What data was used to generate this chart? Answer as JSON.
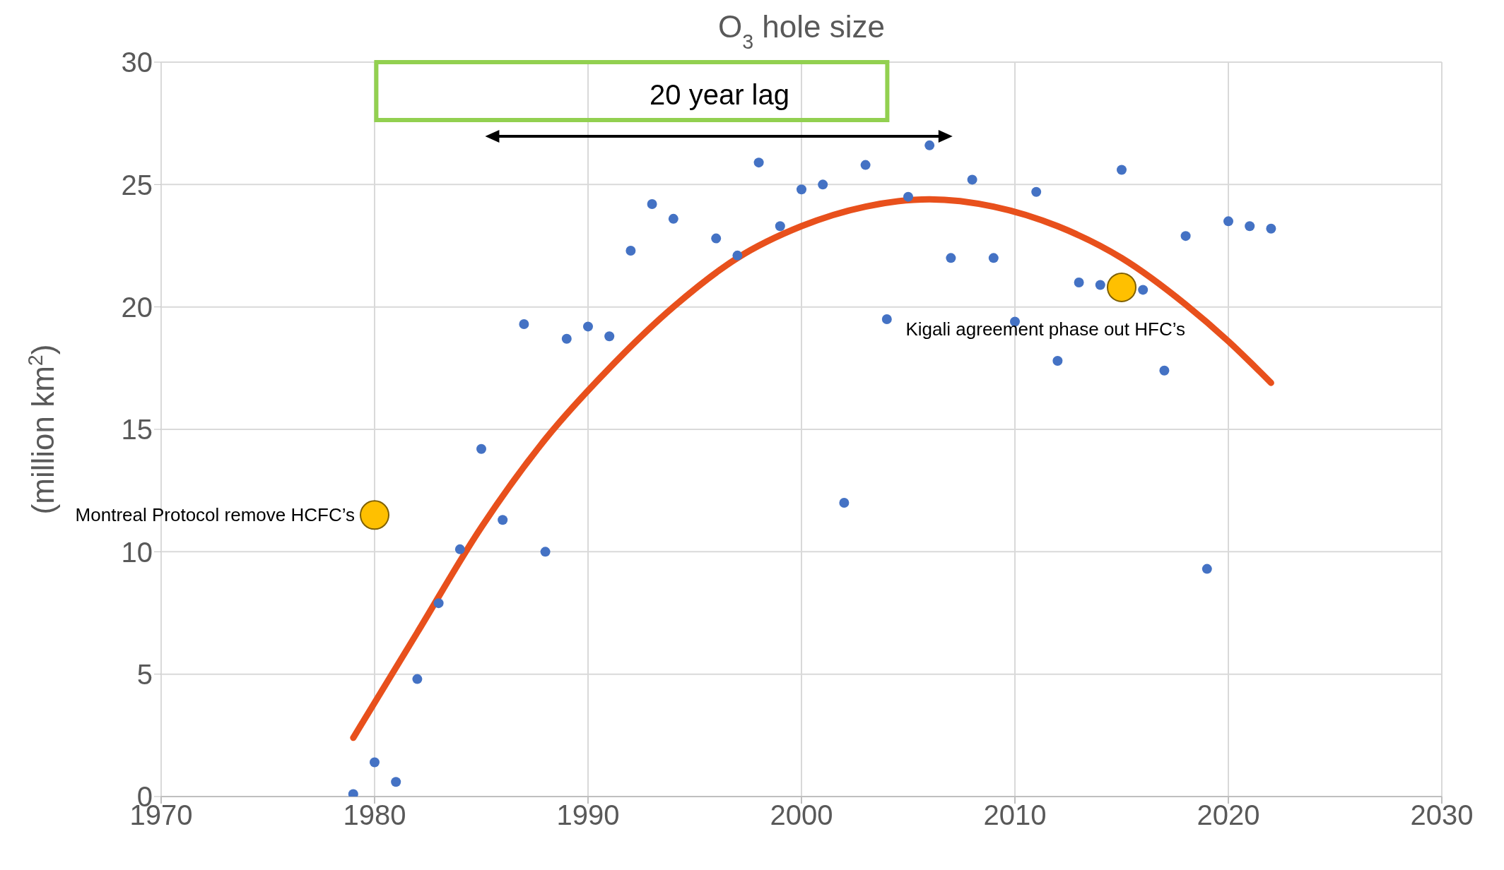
{
  "chart_data": {
    "type": "scatter",
    "title": "O$_{3}$ hole size",
    "ylabel": "(million km$^{2}$)",
    "xlim": [
      1970,
      2030
    ],
    "xticks": [
      1970,
      1980,
      1990,
      2000,
      2010,
      2020,
      2030
    ],
    "ylim": [
      0,
      30
    ],
    "yticks": [
      0,
      5,
      10,
      15,
      20,
      25,
      30
    ],
    "grid": true,
    "legend": false,
    "marker": "circle",
    "annotations": [
      "20 year lag",
      {
        "text": "Montreal Protocol remove HCFC’s",
        "x": 1980,
        "y": 11.5
      },
      {
        "text": "Kigali agreement phase out HFC’s",
        "x": 2015,
        "y": 20.8
      }
    ],
    "series": [
      {
        "color": "#4472c4",
        "x": [
          1979,
          1980,
          1981,
          1982,
          1983,
          1984,
          1985,
          1986,
          1987,
          1988,
          1989,
          1990,
          1991,
          1992,
          1993,
          1994,
          1996,
          1997,
          1998,
          1999,
          2000,
          2001,
          2002,
          2003,
          2004,
          2005,
          2006,
          2007,
          2008,
          2009,
          2010,
          2011,
          2012,
          2013,
          2014,
          2015,
          2016,
          2017,
          2018,
          2019,
          2020,
          2021,
          2022
        ],
        "values": [
          0.1,
          1.4,
          0.6,
          4.8,
          7.9,
          10.1,
          14.2,
          11.3,
          19.3,
          10.0,
          18.7,
          19.2,
          18.8,
          22.3,
          24.2,
          23.6,
          22.8,
          22.1,
          25.9,
          23.3,
          24.8,
          25.0,
          12.0,
          25.8,
          19.5,
          24.5,
          26.6,
          22.0,
          25.2,
          22.0,
          19.4,
          24.7,
          17.8,
          21.0,
          20.9,
          25.6,
          20.7,
          17.4,
          22.9,
          9.3,
          23.5,
          23.3,
          23.2
        ]
      },
      {
        "type": "line",
        "color": "#e8501c",
        "marker": "none",
        "x": [
          1979,
          1982,
          1985,
          1988,
          1991,
          1994,
          1997,
          2000,
          2003,
          2006,
          2009,
          2012,
          2015,
          2018,
          2020,
          2022
        ],
        "values": [
          2.4,
          6.7,
          11.0,
          14.6,
          17.5,
          20.0,
          22.0,
          23.3,
          24.1,
          24.4,
          24.1,
          23.3,
          22.0,
          20.1,
          18.6,
          16.9
        ]
      },
      {
        "color": "#ffc000",
        "marker": "circle",
        "x": [
          1980,
          2015
        ],
        "values": [
          11.5,
          20.8
        ]
      }
    ]
  }
}
